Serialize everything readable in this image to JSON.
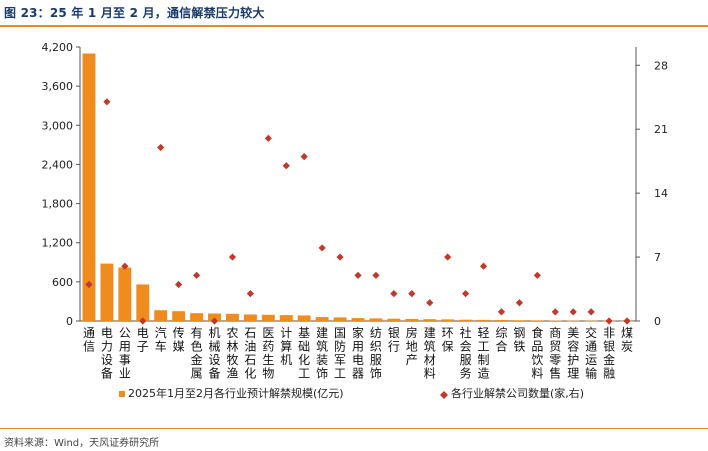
{
  "figure": {
    "title": "图 23：25 年 1 月至 2 月，通信解禁压力较大",
    "source": "资料来源：Wind，天风证券研究所"
  },
  "colors": {
    "bar": "#f08c1e",
    "marker": "#c0392b",
    "accent": "#e08a2c"
  },
  "chart_data": {
    "type": "bar",
    "title": "",
    "categories": [
      "通信",
      "电力设备",
      "公用事业",
      "电子",
      "汽车",
      "传媒",
      "有色金属",
      "机械设备",
      "农林牧渔",
      "石油石化",
      "医药生物",
      "计算机",
      "基础化工",
      "建筑装饰",
      "国防军工",
      "家用电器",
      "纺织服饰",
      "银行",
      "房地产",
      "建筑材料",
      "环保",
      "社会服务",
      "轻工制造",
      "综合",
      "钢铁",
      "食品饮料",
      "商贸零售",
      "美容护理",
      "交通运输",
      "非银金融",
      "煤炭"
    ],
    "series": [
      {
        "name": "2025年1月至2月各行业预计解禁规模(亿元)",
        "kind": "bar",
        "axis": "left",
        "values": [
          4100,
          880,
          820,
          560,
          165,
          150,
          120,
          115,
          110,
          100,
          95,
          90,
          85,
          60,
          55,
          45,
          40,
          35,
          32,
          28,
          25,
          20,
          18,
          15,
          12,
          10,
          8,
          6,
          5,
          3,
          2
        ]
      },
      {
        "name": "各行业解禁公司数量(家,右)",
        "kind": "scatter",
        "axis": "right",
        "values": [
          4,
          24,
          6,
          0,
          19,
          4,
          5,
          0,
          7,
          3,
          20,
          17,
          18,
          8,
          7,
          5,
          5,
          3,
          3,
          2,
          7,
          3,
          6,
          1,
          2,
          5,
          1,
          1,
          1,
          0,
          0
        ]
      }
    ],
    "y_left": {
      "ticks": [
        0,
        600,
        1200,
        1800,
        2400,
        3000,
        3600,
        4200
      ],
      "tick_labels": [
        "0",
        "600",
        "1,200",
        "1,800",
        "2,400",
        "3,000",
        "3,600",
        "4,200"
      ],
      "lim": [
        0,
        4200
      ]
    },
    "y_right": {
      "ticks": [
        0,
        7,
        14,
        21,
        28
      ],
      "tick_labels": [
        "0",
        "7",
        "14",
        "21",
        "28"
      ],
      "lim": [
        0,
        30
      ]
    },
    "legend_position": "bottom",
    "grid": false
  }
}
